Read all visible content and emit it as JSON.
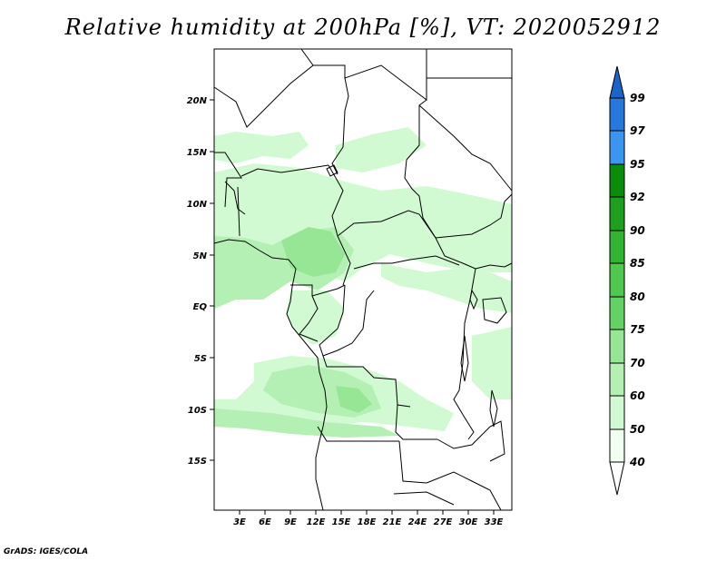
{
  "title": "Relative humidity at 200hPa [%], VT: 2020052912",
  "credit": "GrADS: IGES/COLA",
  "map": {
    "lon_range": [
      0,
      36
    ],
    "lat_range": [
      -20,
      25
    ],
    "lat_ticks": [
      "20N",
      "15N",
      "10N",
      "5N",
      "EQ",
      "5S",
      "10S",
      "15S"
    ],
    "lon_ticks": [
      "3E",
      "6E",
      "9E",
      "12E",
      "15E",
      "18E",
      "21E",
      "24E",
      "27E",
      "30E",
      "33E"
    ]
  },
  "colorbar": {
    "labels": [
      "99",
      "97",
      "95",
      "92",
      "90",
      "85",
      "80",
      "75",
      "70",
      "60",
      "50",
      "40"
    ],
    "colors": {
      "over": "#1e64c8",
      "c97_99": "#2878dc",
      "c95_97": "#3c96f0",
      "c92_95": "#0a8c0a",
      "c90_92": "#1ea01e",
      "c85_90": "#32b432",
      "c80_85": "#50c850",
      "c75_80": "#64d264",
      "c70_75": "#96e696",
      "c60_70": "#b4f0b4",
      "c50_60": "#d2fad2",
      "c40_50": "#f0fff0",
      "under": "#ffffff"
    }
  }
}
